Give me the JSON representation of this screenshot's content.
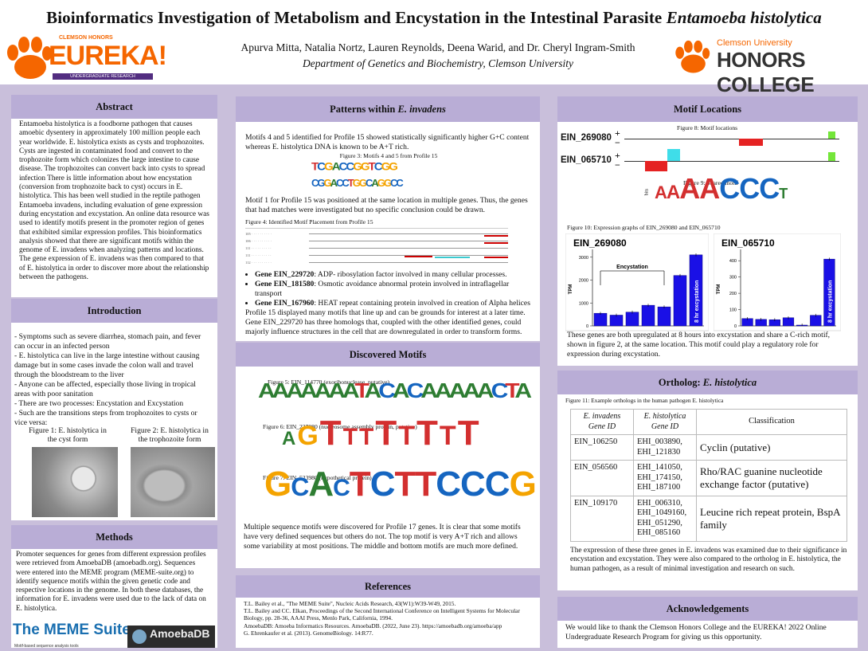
{
  "header": {
    "title_main": "Bioinformatics Investigation of Metabolism and Encystation in the Intestinal Parasite ",
    "title_italic": "Entamoeba histolytica",
    "authors": "Apurva Mitta, Natalia Nortz, Lauren Reynolds, Deena Warid, and Dr. Cheryl Ingram-Smith",
    "department": "Department of Genetics and Biochemistry, Clemson University",
    "logo_left_top": "CLEMSON HONORS",
    "logo_left_main": "EUREKA!",
    "logo_left_sub": "UNDERGRADUATE RESEARCH",
    "logo_right_top": "Clemson University",
    "logo_right_main": "HONORS COLLEGE"
  },
  "abstract": {
    "heading": "Abstract",
    "text": "Entamoeba histolytica is a foodborne pathogen that causes amoebic dysentery in approximately 100 million people each year worldwide. E. histolytica exists as cysts and trophozoites. Cysts are ingested in contaminated food and convert to the trophozoite form which colonizes the large intestine to cause disease. The trophozoites can convert back into cysts to spread infection There is little information about how encystation (conversion from trophozoite back to cyst) occurs in E. histolytica. This has been well studied in the reptile pathogen Entamoeba invadens, including evaluation of gene expression during encystation and excystation. An online data resource was used to identify motifs present in the promoter region of genes that exhibited similar expression profiles. This bioinformatics analysis showed that there are significant motifs within the genome of E. invadens when analyzing patterns and locations. The gene expression of E. invadens was then compared to that of E. histolytica in order to discover more about the relationship between the pathogens."
  },
  "introduction": {
    "heading": "Introduction",
    "items": [
      "Symptoms such as severe diarrhea, stomach pain, and fever can occur in an infected person",
      "E. histolytica can live in the large intestine without causing damage but in some cases invade the colon wall and travel through the bloodstream to the liver",
      "Anyone can be affected, especially those living in tropical areas with poor sanitation",
      "There are two processes: Encystation and Excystation",
      "Such are the transitions steps from trophozoites to cysts or vice versa:"
    ],
    "fig1_caption": "Figure 1: E. histolytica in the cyst form",
    "fig2_caption": "Figure 2: E. histolytica in the trophozoite form"
  },
  "methods": {
    "heading": "Methods",
    "text": "Promoter sequences for genes from different expression profiles were retrieved from AmoebaDB (amoebadb.org). Sequences were entered into the MEME program (MEME-suite.org) to identify sequence motifs within the given genetic code and respective locations in the genome. In both these databases, the information for E. invadens were used due to the lack of data on E. histolytica.",
    "logo1": "The MEME Suite",
    "logo1_sub": "Motif-based sequence analysis tools",
    "logo2": "AmoebaDB"
  },
  "patterns": {
    "heading": "Patterns within E. invadens",
    "p1": "Motifs 4 and 5 identified for Profile 15 showed statistically significantly higher G+C content whereas E. histolytica DNA is known to be A+T rich.",
    "fig3_caption": "Figure 3: Motifs 4 and 5 from Profile 15",
    "p2": "Motif 1 for Profile 15 was positioned at the same location in multiple genes. Thus, the genes that had matches were investigated but no specific conclusion could be drawn.",
    "fig4_caption": "Figure 4: Identified Motif Placement from Profile 15",
    "genes": [
      {
        "name": "Gene EIN_229720",
        "desc": ": ADP- ribosylation factor involved in many cellular processes."
      },
      {
        "name": "Gene EIN_181580",
        "desc": ": Osmotic avoidance abnormal protein involved in intraflagellar transport"
      },
      {
        "name": "Gene EIN_167960",
        "desc": ": HEAT repeat containing protein involved in creation of Alpha helices"
      }
    ],
    "p3": "Profile 15 displayed many motifs that line up and can be grounds for interest at a later time. Gene EIN_229720 has three homologs that, coupled with the other identified genes, could majorly influence structures in the cell that are downregulated in order to transform forms."
  },
  "discovered": {
    "heading": "Discovered Motifs",
    "fig5_caption": "Figure 5: EIN_114770 (exoribonuclease, putative)",
    "fig6_caption": "Figure 6: EIN_227080 (nucleosome assembly protein, putative)",
    "fig7_caption": "Figure 7: EIN_523980 (hypothetical protein)",
    "text": "Multiple sequence motifs were discovered for Profile 17 genes. It is clear that some motifs have very defined sequences but others do not. The top motif is very A+T rich and allows some variability at most positions. The middle and bottom motifs are much more defined.",
    "motif5": "AAAAAAATACACAAAAACA",
    "motif6": "AGTTTTTTTTT",
    "motif7": "GCACTCTTCCCG"
  },
  "references": {
    "heading": "References",
    "items": [
      "T.L. Bailey et al., \"The MEME Suite\", Nucleic Acids Research, 43(W1):W39-W49, 2015.",
      "T.L. Bailey and CC. Elkan, Proceedings of the Second International Conference on Intelligent Systems for Molecular Biology, pp. 28-36, AAAI Press, Menlo Park, California, 1994.",
      "AmoebaDB: Amoeba Informatics Resources. AmoebaDB. (2022, June 23). https://amoebadb.org/amoeba/app",
      "G. Ehrenkaufer et al. (2013). GenomeBiology. 14:R77."
    ]
  },
  "motif_locations": {
    "heading": "Motif Locations",
    "fig8_caption": "Figure 8: Motif locations",
    "gene1": "EIN_269080",
    "gene2": "EIN_065710",
    "fig9_caption": "Figure 9: Shared motif",
    "shared_motif": "AAAACCCT",
    "fig10_caption": "Figure 10: Expression graphs of EIN_269080 and EIN_065710",
    "text": "These genes are both upregulated at 8 hours into excystation and share a C-rich motif, shown in figure 2,  at the same location. This motif could play a regulatory role for expression during excystation."
  },
  "chart_data": [
    {
      "type": "bar",
      "title": "EIN_269080",
      "ylabel": "TPM",
      "ylim": [
        0,
        3200
      ],
      "yticks": [
        "0",
        "1000",
        "2000",
        "3000"
      ],
      "annotations": [
        "Encystation",
        "8 hr excystation"
      ],
      "values": [
        550,
        470,
        600,
        900,
        830,
        2200,
        3100
      ]
    },
    {
      "type": "bar",
      "title": "EIN_065710",
      "ylabel": "TPM",
      "ylim": [
        0,
        450
      ],
      "yticks": [
        "0",
        "100",
        "200",
        "300",
        "400"
      ],
      "annotations": [
        "8 hr excystation"
      ],
      "values": [
        45,
        40,
        38,
        50,
        5,
        65,
        410
      ]
    }
  ],
  "ortholog": {
    "heading": "Ortholog: E. histolytica",
    "fig11_caption": "Figure 11: Example orthologs in the human pathogen E. histolytica",
    "col1": "E. invadens Gene ID",
    "col2": "E. histolytica Gene ID",
    "col3": "Classification",
    "rows": [
      {
        "inv": "EIN_106250",
        "his": "EHI_003890, EHI_121830",
        "cls": "Cyclin (putative)"
      },
      {
        "inv": "EIN_056560",
        "his": "EHI_141050, EHI_174150, EHI_187100",
        "cls": "Rho/RAC guanine nucleotide exchange factor (putative)"
      },
      {
        "inv": "EIN_109170",
        "his": "EHI_006310, EHI_1049160, EHI_051290, EHI_085160",
        "cls": "Leucine rich repeat protein, BspA family"
      }
    ],
    "text": "The expression of these three genes in E. invadens was examined due to their significance in encystation and excystation. They were also compared to the ortholog in E. histolytica, the human pathogen, as a result of minimal investigation and research on such."
  },
  "acknowledgements": {
    "heading": "Acknowledgements",
    "text": "We would like to thank the Clemson Honors College and the EUREKA! 2022 Online Undergraduate Research Program for giving us this opportunity."
  }
}
